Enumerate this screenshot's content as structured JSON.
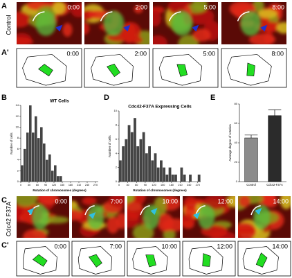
{
  "panels": {
    "A": {
      "label": "A",
      "row_label": "Control",
      "times": [
        "0:00",
        "2:00",
        "5:00",
        "8:00"
      ]
    },
    "A2": {
      "label": "A'",
      "times": [
        "0:00",
        "2:00",
        "5:00",
        "8:00"
      ]
    },
    "C": {
      "label": "C",
      "row_label": "Cdc42 F37A",
      "times": [
        "0:00",
        "7:00",
        "10:00",
        "12:00",
        "14:00"
      ]
    },
    "C2": {
      "label": "C'",
      "times": [
        "0:00",
        "7:00",
        "10:00",
        "12:00",
        "14:00"
      ]
    }
  },
  "chart_data": [
    {
      "type": "histogram",
      "panel_label": "B",
      "title": "WT Cells",
      "ylabel": "Number of cells",
      "xlabel": "Rotation of chromosomes (degrees)",
      "bins": [
        0,
        10,
        20,
        30,
        40,
        50,
        60,
        70,
        80,
        90,
        100,
        110,
        120,
        130,
        140,
        150
      ],
      "counts": [
        3,
        6,
        9,
        14,
        9,
        12,
        8,
        10,
        7,
        4,
        5,
        2,
        3,
        1,
        1
      ],
      "color": "#444444",
      "xlim": [
        0,
        280
      ],
      "xticks": [
        0,
        30,
        60,
        90,
        120,
        150,
        180,
        210,
        240,
        270
      ],
      "ylim": [
        0,
        14
      ],
      "yticks": [
        0,
        2,
        4,
        6,
        8,
        10,
        12,
        14
      ]
    },
    {
      "type": "histogram",
      "panel_label": "D",
      "title": "Cdc42-F37A Expressing Cells",
      "ylabel": "Number of cells",
      "xlabel": "Rotation of chromosomes (degrees)",
      "bins": [
        0,
        10,
        20,
        30,
        40,
        50,
        60,
        70,
        80,
        90,
        100,
        110,
        120,
        130,
        140,
        150,
        160,
        170,
        180,
        190,
        200,
        210,
        220,
        230,
        240,
        250,
        260,
        270,
        280
      ],
      "counts": [
        3,
        5,
        6,
        8,
        7,
        9,
        5,
        6,
        7,
        4,
        5,
        3,
        4,
        2,
        3,
        2,
        1,
        2,
        1,
        1,
        0,
        2,
        1,
        0,
        1,
        0,
        0,
        1
      ],
      "color": "#444444",
      "xlim": [
        0,
        280
      ],
      "xticks": [
        0,
        30,
        60,
        90,
        120,
        150,
        180,
        210,
        240,
        270
      ],
      "ylim": [
        0,
        10
      ],
      "yticks": [
        0,
        2,
        4,
        6,
        8,
        10
      ]
    },
    {
      "type": "bar",
      "panel_label": "E",
      "ylabel": "Average degree of rotation",
      "categories": [
        "Control",
        "Cdc42-F37A"
      ],
      "values": [
        45,
        68
      ],
      "errors": [
        3,
        6
      ],
      "colors": [
        "#8c8c8c",
        "#2b2b2b"
      ],
      "ylim": [
        0,
        80
      ],
      "yticks": [
        0,
        20,
        40,
        60,
        80
      ]
    }
  ]
}
